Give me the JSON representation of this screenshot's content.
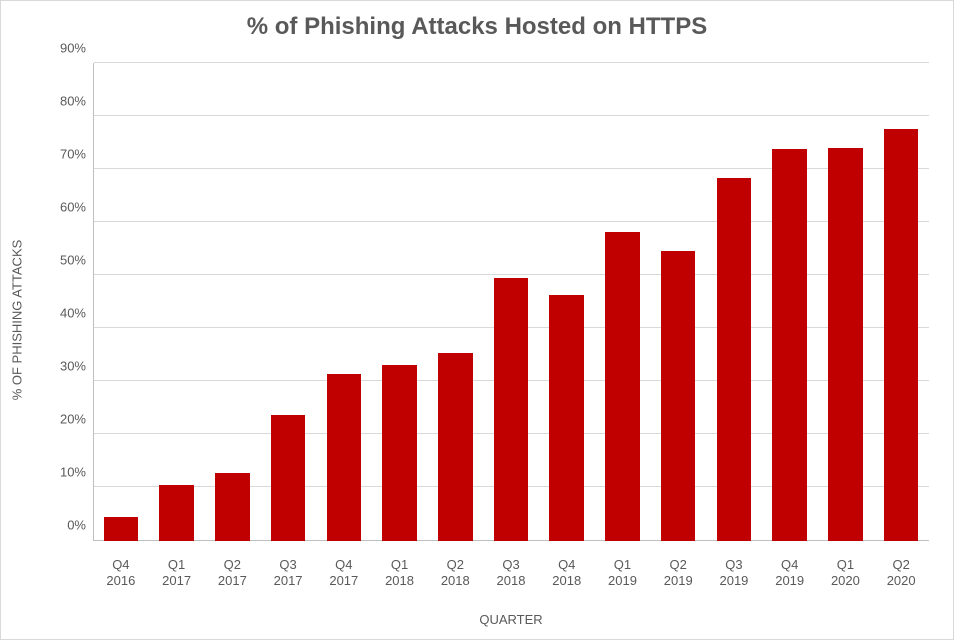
{
  "chart": {
    "type": "bar",
    "title": "% of Phishing Attacks Hosted on HTTPS",
    "title_fontsize": 24,
    "title_color": "#595959",
    "x_axis_title": "QUARTER",
    "y_axis_title": "% OF PHISHING ATTACKS",
    "axis_title_fontsize": 13,
    "axis_title_color": "#595959",
    "tick_fontsize": 13,
    "tick_color": "#595959",
    "background_color": "#ffffff",
    "border_color": "#d9d9d9",
    "grid_color": "#d9d9d9",
    "axis_line_color": "#bfbfbf",
    "bar_color": "#c00000",
    "bar_width_ratio": 0.62,
    "y_min": 0,
    "y_max": 90,
    "y_tick_step": 10,
    "y_ticks": [
      "0%",
      "10%",
      "20%",
      "30%",
      "40%",
      "50%",
      "60%",
      "70%",
      "80%",
      "90%"
    ],
    "categories": [
      {
        "q": "Q4",
        "y": "2016"
      },
      {
        "q": "Q1",
        "y": "2017"
      },
      {
        "q": "Q2",
        "y": "2017"
      },
      {
        "q": "Q3",
        "y": "2017"
      },
      {
        "q": "Q4",
        "y": "2017"
      },
      {
        "q": "Q1",
        "y": "2018"
      },
      {
        "q": "Q2",
        "y": "2018"
      },
      {
        "q": "Q3",
        "y": "2018"
      },
      {
        "q": "Q4",
        "y": "2018"
      },
      {
        "q": "Q1",
        "y": "2019"
      },
      {
        "q": "Q2",
        "y": "2019"
      },
      {
        "q": "Q3",
        "y": "2019"
      },
      {
        "q": "Q4",
        "y": "2019"
      },
      {
        "q": "Q1",
        "y": "2020"
      },
      {
        "q": "Q2",
        "y": "2020"
      }
    ],
    "values": [
      4.5,
      10.5,
      12.8,
      23.8,
      31.4,
      33.2,
      35.4,
      49.5,
      46.3,
      58.2,
      54.6,
      68.4,
      73.8,
      74.0,
      77.6
    ]
  }
}
